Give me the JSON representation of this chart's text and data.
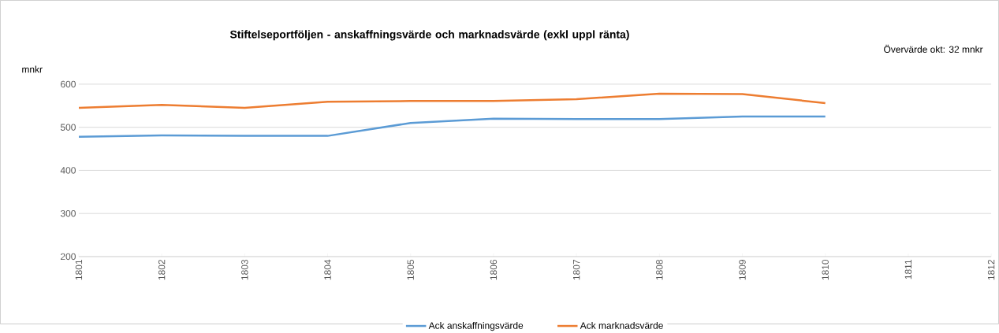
{
  "chart_data": {
    "type": "line",
    "title": "Stiftelseportföljen - anskaffningsvärde och marknadsvärde (exkl uppl ränta)",
    "ylabel": "mnkr",
    "annotations": [
      "Övervärde okt: 32 mnkr"
    ],
    "categories": [
      "1801",
      "1802",
      "1803",
      "1804",
      "1805",
      "1806",
      "1807",
      "1808",
      "1809",
      "1810",
      "1811",
      "1812"
    ],
    "series": [
      {
        "name": "Ack anskaffningsvärde",
        "color": "#5b9bd5",
        "values": [
          478,
          481,
          480,
          480,
          510,
          520,
          519,
          519,
          525,
          525,
          null,
          null
        ]
      },
      {
        "name": "Ack marknadsvärde",
        "color": "#ed7d31",
        "values": [
          545,
          552,
          545,
          559,
          561,
          561,
          565,
          578,
          577,
          556,
          null,
          null
        ]
      }
    ],
    "ylim": [
      200,
      600
    ],
    "yticks": [
      200,
      300,
      400,
      500,
      600
    ],
    "grid": "y",
    "legend": "bottom"
  }
}
